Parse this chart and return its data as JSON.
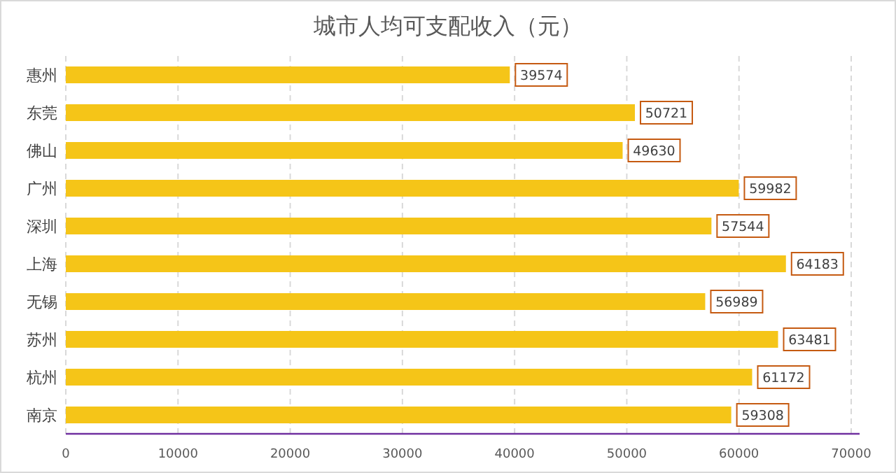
{
  "chart_data": {
    "type": "bar",
    "orientation": "horizontal",
    "title": "城市人均可支配收入（元）",
    "categories": [
      "惠州",
      "东莞",
      "佛山",
      "广州",
      "深圳",
      "上海",
      "无锡",
      "苏州",
      "杭州",
      "南京"
    ],
    "values": [
      39574,
      50721,
      49630,
      59982,
      57544,
      64183,
      56989,
      63481,
      61172,
      59308
    ],
    "color": "#f5c518",
    "xlim": [
      0,
      70000
    ],
    "xticks": [
      0,
      10000,
      20000,
      30000,
      40000,
      50000,
      60000,
      70000
    ],
    "grid": "x",
    "data_labels": true
  }
}
